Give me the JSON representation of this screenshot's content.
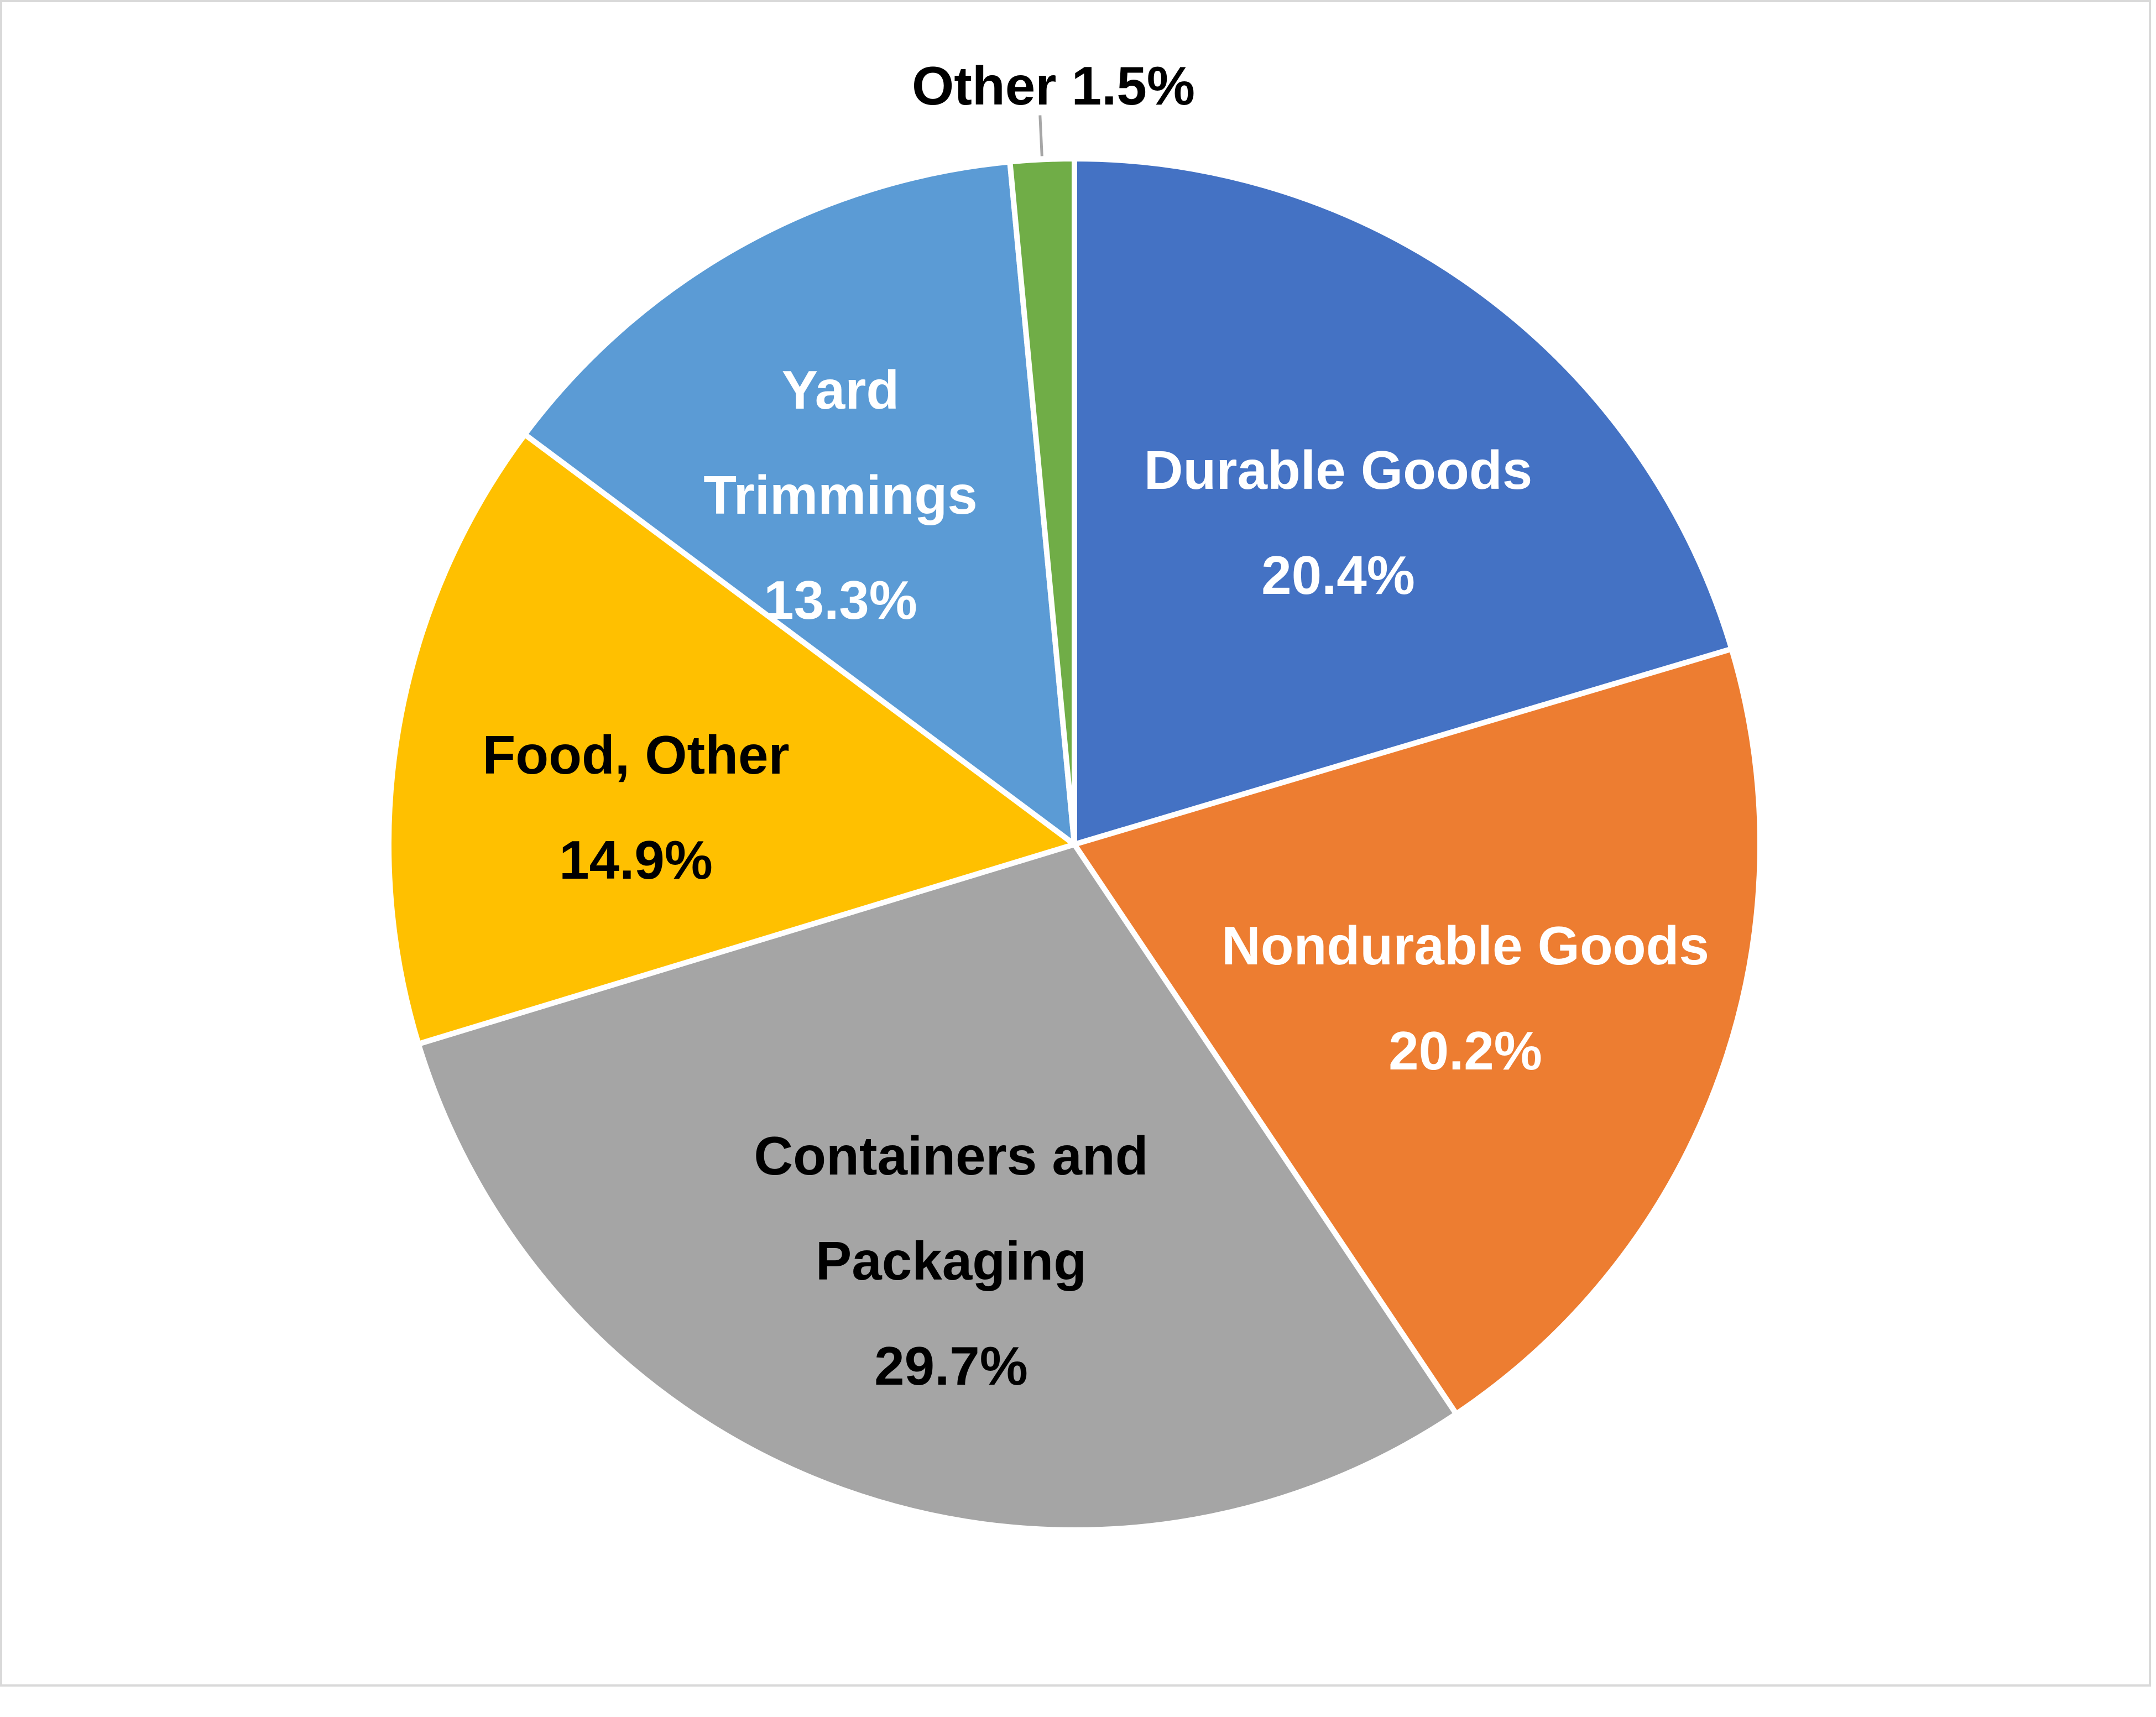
{
  "chart_data": {
    "type": "pie",
    "slices": [
      {
        "label_lines": [
          "Durable Goods",
          "20.4%"
        ],
        "value": 20.4,
        "color": "#4472c4",
        "label_color": "#ffffff"
      },
      {
        "label_lines": [
          "Nondurable Goods",
          "20.2%"
        ],
        "value": 20.2,
        "color": "#ed7d31",
        "label_color": "#ffffff"
      },
      {
        "label_lines": [
          "Containers and",
          "Packaging",
          "29.7%"
        ],
        "value": 29.7,
        "color": "#a5a5a5",
        "label_color": "#000000"
      },
      {
        "label_lines": [
          "Food, Other",
          "14.9%"
        ],
        "value": 14.9,
        "color": "#ffc000",
        "label_color": "#000000"
      },
      {
        "label_lines": [
          "Yard",
          "Trimmings",
          "13.3%"
        ],
        "value": 13.3,
        "color": "#5b9bd5",
        "label_color": "#ffffff"
      },
      {
        "label_lines": [
          "Other 1.5%"
        ],
        "value": 1.5,
        "color": "#70ad47",
        "label_color": "#000000"
      }
    ],
    "start_angle_deg": 0,
    "direction": "clockwise",
    "legend": "none",
    "title": ""
  }
}
